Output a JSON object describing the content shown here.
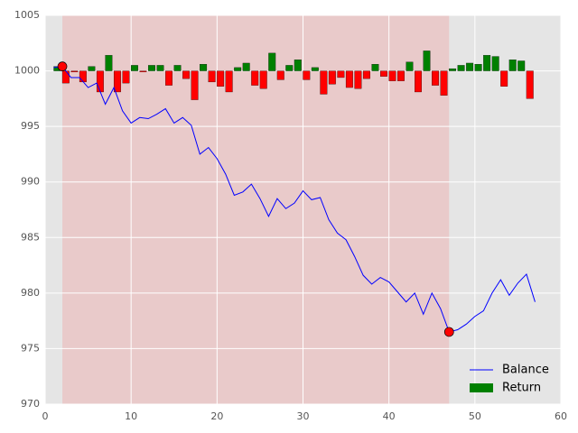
{
  "chart_data": {
    "type": "line",
    "xlim": [
      0,
      60
    ],
    "ylim": [
      970,
      1005
    ],
    "xticks": [
      0,
      10,
      20,
      30,
      40,
      50,
      60
    ],
    "yticks": [
      970,
      975,
      980,
      985,
      990,
      995,
      1000,
      1005
    ],
    "grid": true,
    "legend": "lower right",
    "span": {
      "x": [
        2,
        47
      ],
      "color": "#e9caca"
    },
    "series": [
      {
        "name": "Balance",
        "type": "line",
        "color": "#0000ff",
        "x": [
          1,
          2,
          3,
          4,
          5,
          6,
          7,
          8,
          9,
          10,
          11,
          12,
          13,
          14,
          15,
          16,
          17,
          18,
          19,
          20,
          21,
          22,
          23,
          24,
          25,
          26,
          27,
          28,
          29,
          30,
          31,
          32,
          33,
          34,
          35,
          36,
          37,
          38,
          39,
          40,
          41,
          42,
          43,
          44,
          45,
          46,
          47,
          48,
          49,
          50,
          51,
          52,
          53,
          54,
          55,
          56,
          57
        ],
        "values": [
          1000.3,
          1000.4,
          999.4,
          999.4,
          998.5,
          998.9,
          997.0,
          998.5,
          996.4,
          995.3,
          995.8,
          995.7,
          996.1,
          996.6,
          995.3,
          995.8,
          995.1,
          992.5,
          993.1,
          992.1,
          990.7,
          988.8,
          989.1,
          989.8,
          988.5,
          986.9,
          988.5,
          987.6,
          988.1,
          989.2,
          988.4,
          988.6,
          986.6,
          985.4,
          984.8,
          983.3,
          981.6,
          980.8,
          981.4,
          981.0,
          980.1,
          979.2,
          980.0,
          978.1,
          980.0,
          978.6,
          976.5,
          976.7,
          977.2,
          977.9,
          978.4,
          980.0,
          981.2,
          979.8,
          980.9,
          981.7,
          979.2
        ]
      },
      {
        "name": "Return",
        "type": "bar",
        "color": "#008000",
        "negative_color": "#ff0000",
        "baseline": 1000,
        "x": [
          1,
          2,
          3,
          4,
          5,
          6,
          7,
          8,
          9,
          10,
          11,
          12,
          13,
          14,
          15,
          16,
          17,
          18,
          19,
          20,
          21,
          22,
          23,
          24,
          25,
          26,
          27,
          28,
          29,
          30,
          31,
          32,
          33,
          34,
          35,
          36,
          37,
          38,
          39,
          40,
          41,
          42,
          43,
          44,
          45,
          46,
          47,
          48,
          49,
          50,
          51,
          52,
          53,
          54,
          55,
          56
        ],
        "values": [
          0.4,
          -1.1,
          -0.1,
          -1.0,
          0.4,
          -1.9,
          1.4,
          -1.9,
          -1.1,
          0.5,
          -0.1,
          0.5,
          0.5,
          -1.3,
          0.5,
          -0.7,
          -2.6,
          0.6,
          -1.0,
          -1.4,
          -1.9,
          0.3,
          0.7,
          -1.3,
          -1.6,
          1.6,
          -0.8,
          0.5,
          1.0,
          -0.8,
          0.3,
          -2.1,
          -1.2,
          -0.6,
          -1.5,
          -1.6,
          -0.7,
          0.6,
          -0.5,
          -0.9,
          -0.9,
          0.8,
          -1.9,
          1.8,
          -1.3,
          -2.2,
          0.2,
          0.5,
          0.7,
          0.6,
          1.4,
          1.3,
          -1.4,
          1.0,
          0.9,
          -2.5
        ]
      }
    ],
    "markers": {
      "color": "#ff0000",
      "x": [
        2,
        47
      ],
      "values": [
        1000.4,
        976.5
      ]
    }
  }
}
